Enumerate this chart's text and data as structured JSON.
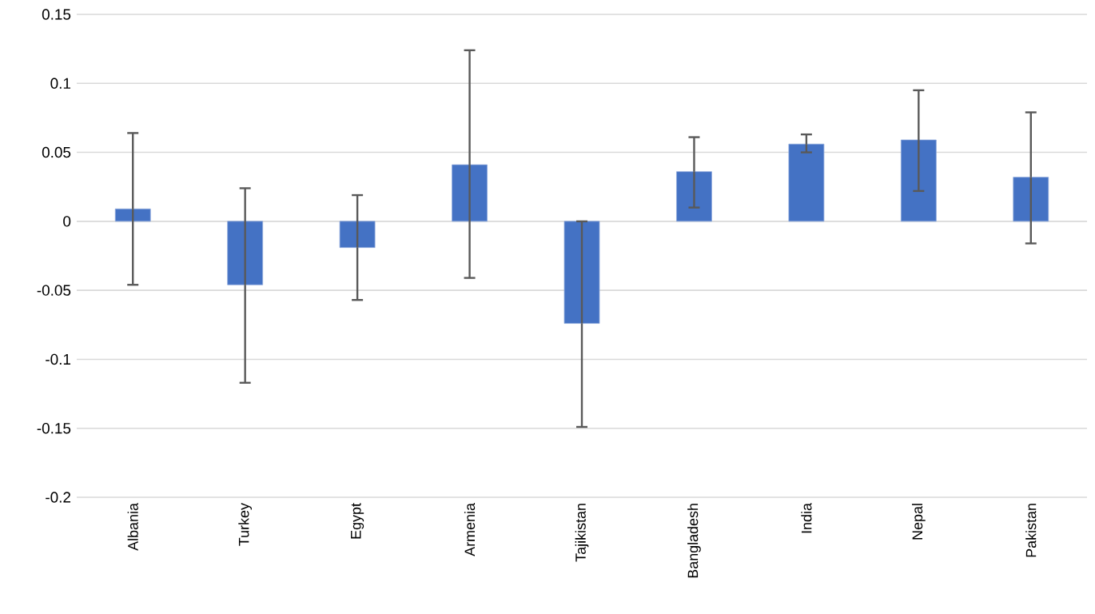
{
  "chart_data": {
    "type": "bar",
    "categories": [
      "Albania",
      "Turkey",
      "Egypt",
      "Armenia",
      "Tajikistan",
      "Bangladesh",
      "India",
      "Nepal",
      "Pakistan"
    ],
    "values": [
      0.009,
      -0.046,
      -0.019,
      0.041,
      -0.074,
      0.036,
      0.056,
      0.059,
      0.032
    ],
    "errors": [
      [
        -0.046,
        0.064
      ],
      [
        -0.117,
        0.024
      ],
      [
        -0.057,
        0.019
      ],
      [
        -0.041,
        0.124
      ],
      [
        -0.149,
        0.0
      ],
      [
        0.01,
        0.061
      ],
      [
        0.05,
        0.063
      ],
      [
        0.022,
        0.095
      ],
      [
        -0.016,
        0.079
      ]
    ],
    "color": "#4472c4",
    "ylim": [
      -0.2,
      0.15
    ],
    "yticks": [
      -0.2,
      -0.15,
      -0.1,
      -0.05,
      0,
      0.05,
      0.1,
      0.15
    ],
    "grid": "y",
    "legend": false
  }
}
